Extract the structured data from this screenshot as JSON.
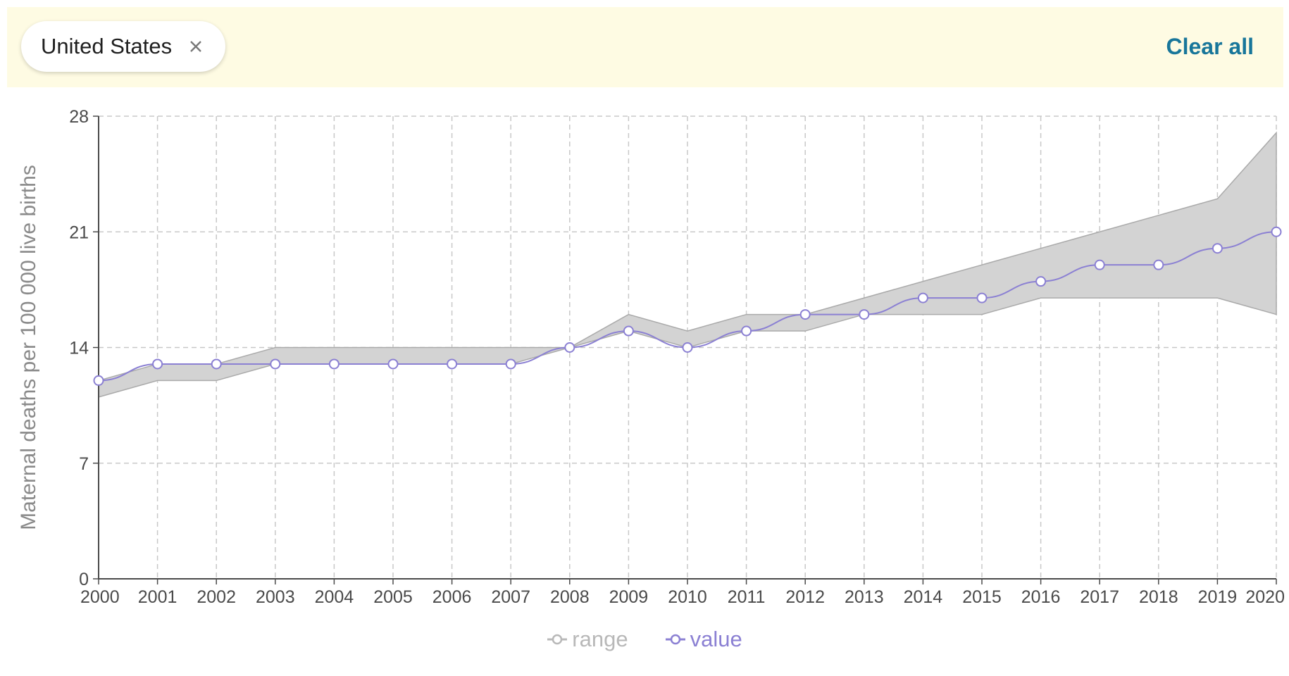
{
  "filters": {
    "chip_label": "United States",
    "clear_all_label": "Clear all"
  },
  "colors": {
    "range_fill": "#d3d3d3",
    "range_stroke": "#aaaaaa",
    "value_line": "#8b80d3",
    "legend_range": "#b8b8b8",
    "grid": "#c8c8c8",
    "axis_text": "#4a4a4a",
    "filter_bg": "#fefbe3",
    "link": "#18769a"
  },
  "legend": {
    "range_label": "range",
    "value_label": "value"
  },
  "chart_data": {
    "type": "area",
    "ylabel": "Maternal deaths per 100 000 live births",
    "xlabel": "",
    "ylim": [
      0,
      28
    ],
    "yticks": [
      0,
      7,
      14,
      21,
      28
    ],
    "grid": true,
    "legend_position": "bottom-center",
    "x": [
      2000,
      2001,
      2002,
      2003,
      2004,
      2005,
      2006,
      2007,
      2008,
      2009,
      2010,
      2011,
      2012,
      2013,
      2014,
      2015,
      2016,
      2017,
      2018,
      2019,
      2020
    ],
    "series": [
      {
        "name": "range",
        "type": "band",
        "low": [
          11,
          12,
          12,
          13,
          13,
          13,
          13,
          13,
          14,
          15,
          14,
          15,
          15,
          16,
          16,
          16,
          17,
          17,
          17,
          17,
          16
        ],
        "high": [
          12,
          13,
          13,
          14,
          14,
          14,
          14,
          14,
          14,
          16,
          15,
          16,
          16,
          17,
          18,
          19,
          20,
          21,
          22,
          23,
          27
        ]
      },
      {
        "name": "value",
        "type": "line",
        "values": [
          12,
          13,
          13,
          13,
          13,
          13,
          13,
          13,
          14,
          15,
          14,
          15,
          16,
          16,
          17,
          17,
          18,
          19,
          19,
          20,
          21
        ]
      }
    ]
  }
}
